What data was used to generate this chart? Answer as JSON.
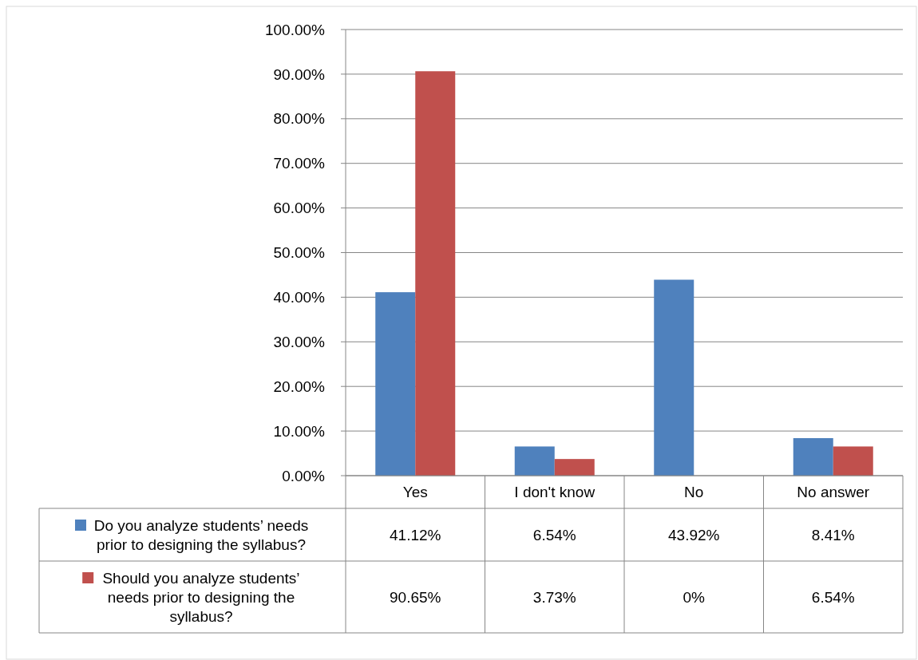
{
  "chart_data": {
    "type": "bar",
    "categories": [
      "Yes",
      "I don't know",
      "No",
      "No answer"
    ],
    "series": [
      {
        "name": "Do you analyze students’ needs prior to designing the syllabus?",
        "color": "#4f81bd",
        "values": [
          41.12,
          6.54,
          43.92,
          8.41
        ],
        "value_labels": [
          "41.12%",
          "6.54%",
          "43.92%",
          "8.41%"
        ]
      },
      {
        "name": "Should you analyze students’ needs prior to designing the syllabus?",
        "color": "#c0504d",
        "values": [
          90.65,
          3.73,
          0,
          6.54
        ],
        "value_labels": [
          "90.65%",
          "3.73%",
          "0%",
          "6.54%"
        ]
      }
    ],
    "ylim": [
      0,
      100
    ],
    "yticks": [
      {
        "value": 0,
        "label": "0.00%"
      },
      {
        "value": 10,
        "label": "10.00%"
      },
      {
        "value": 20,
        "label": "20.00%"
      },
      {
        "value": 30,
        "label": "30.00%"
      },
      {
        "value": 40,
        "label": "40.00%"
      },
      {
        "value": 50,
        "label": "50.00%"
      },
      {
        "value": 60,
        "label": "60.00%"
      },
      {
        "value": 70,
        "label": "70.00%"
      },
      {
        "value": 80,
        "label": "80.00%"
      },
      {
        "value": 90,
        "label": "90.00%"
      },
      {
        "value": 100,
        "label": "100.00%"
      }
    ],
    "grid": "y",
    "legend": "bottom"
  }
}
